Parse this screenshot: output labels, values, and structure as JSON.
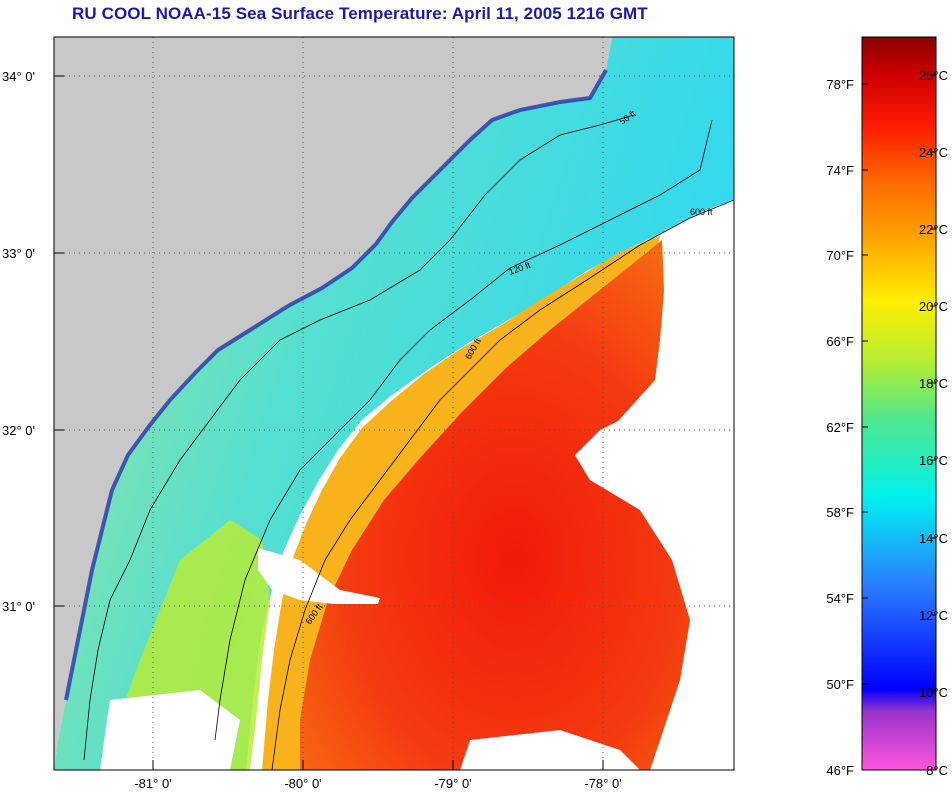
{
  "title": "RU COOL  NOAA-15  Sea Surface Temperature:  April 11, 2005 1216 GMT",
  "map": {
    "lat_labels": [
      "34° 0'",
      "33° 0'",
      "32° 0'",
      "31° 0'"
    ],
    "lon_labels": [
      "-81° 0'",
      "-80° 0'",
      "-79° 0'",
      "-78° 0'"
    ],
    "contour_labels": [
      "50 ft",
      "120 ft",
      "600 ft"
    ],
    "colors": {
      "land": "#c8c8c8",
      "no_data": "#ffffff",
      "grid": "#555555"
    }
  },
  "colorbar": {
    "fahrenheit_labels": [
      "78°F",
      "74°F",
      "70°F",
      "66°F",
      "62°F",
      "58°F",
      "54°F",
      "50°F",
      "46°F"
    ],
    "celsius_labels": [
      "26°C",
      "24°C",
      "22°C",
      "20°C",
      "18°C",
      "16°C",
      "14°C",
      "12°C",
      "10°C",
      "8°C"
    ],
    "range_celsius": [
      8,
      27
    ]
  }
}
